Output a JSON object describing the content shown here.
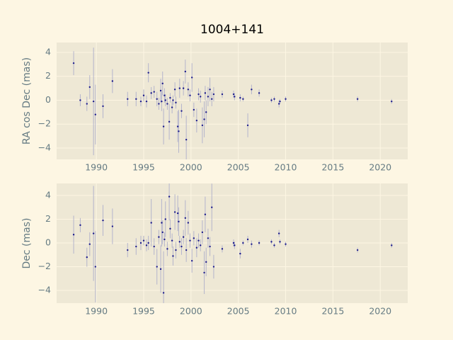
{
  "chart_data": [
    {
      "type": "scatter",
      "title": "1004+141",
      "ylabel": "RA cos Dec (mas)",
      "x": [
        1987.6,
        1988.3,
        1989.0,
        1989.3,
        1989.7,
        1989.9,
        1990.7,
        1991.7,
        1993.3,
        1994.2,
        1994.7,
        1995.0,
        1995.3,
        1995.5,
        1995.8,
        1996.1,
        1996.4,
        1996.6,
        1996.8,
        1996.9,
        1997.0,
        1997.1,
        1997.2,
        1997.3,
        1997.5,
        1997.7,
        1997.8,
        1998.0,
        1998.1,
        1998.3,
        1998.4,
        1998.6,
        1998.7,
        1998.8,
        1999.0,
        1999.2,
        1999.4,
        1999.5,
        1999.7,
        1999.9,
        2000.1,
        2000.3,
        2000.6,
        2000.8,
        2001.0,
        2001.2,
        2001.4,
        2001.5,
        2001.6,
        2001.8,
        2002.0,
        2002.2,
        2002.4,
        2003.3,
        2004.5,
        2004.6,
        2005.2,
        2005.5,
        2006.0,
        2006.4,
        2007.2,
        2008.5,
        2008.8,
        2009.3,
        2009.4,
        2010.0,
        2017.6,
        2021.2
      ],
      "values": [
        3.1,
        0.0,
        -0.3,
        1.1,
        -0.1,
        -1.2,
        -0.5,
        1.6,
        0.1,
        0.1,
        -0.1,
        0.4,
        -0.1,
        2.3,
        0.6,
        0.7,
        0.1,
        -0.3,
        0.8,
        -0.1,
        1.4,
        -2.2,
        0.4,
        0.0,
        -0.3,
        -1.8,
        0.2,
        -0.6,
        0.0,
        0.9,
        -0.2,
        -2.2,
        -2.6,
        1.0,
        -0.9,
        1.0,
        2.4,
        -3.3,
        0.9,
        0.4,
        1.9,
        -0.8,
        -1.7,
        0.5,
        0.3,
        -2.1,
        -1.6,
        0.6,
        -1.0,
        0.3,
        0.9,
        0.1,
        0.5,
        0.5,
        0.5,
        0.3,
        0.2,
        0.1,
        -2.1,
        0.9,
        0.6,
        0.0,
        0.1,
        -0.3,
        -0.1,
        0.1,
        0.1,
        -0.1
      ],
      "errors": [
        1.0,
        0.5,
        0.6,
        1.0,
        4.5,
        2.5,
        1.0,
        1.0,
        0.6,
        0.6,
        0.4,
        0.5,
        0.5,
        0.8,
        0.5,
        0.5,
        0.6,
        0.5,
        1.0,
        0.8,
        1.0,
        1.5,
        0.6,
        0.5,
        0.5,
        1.5,
        0.4,
        0.5,
        0.4,
        0.6,
        0.5,
        1.3,
        1.8,
        0.8,
        0.6,
        0.6,
        1.0,
        2.0,
        0.6,
        0.5,
        1.2,
        0.6,
        1.0,
        0.5,
        0.5,
        1.5,
        1.5,
        0.6,
        1.0,
        0.8,
        1.0,
        0.6,
        0.6,
        0.3,
        0.3,
        0.3,
        0.3,
        0.2,
        1.0,
        0.4,
        0.3,
        0.2,
        0.2,
        0.3,
        0.2,
        0.2,
        0.2,
        0.2
      ],
      "xlim": [
        1985.8,
        2022.9
      ],
      "xticks": [
        1990,
        1995,
        2000,
        2005,
        2010,
        2015,
        2020
      ],
      "ylim": [
        -4.95,
        4.83
      ],
      "yticks": [
        {
          "value": -4,
          "label": "−4"
        },
        {
          "value": -2,
          "label": "−2"
        },
        0,
        2,
        4
      ],
      "color": "#1c1c8c",
      "error_color": "#b4b4cc",
      "grid": true
    },
    {
      "type": "scatter",
      "ylabel": "Dec (mas)",
      "x": [
        1987.6,
        1988.3,
        1989.0,
        1989.3,
        1989.7,
        1989.9,
        1990.7,
        1991.7,
        1993.3,
        1994.2,
        1994.7,
        1995.0,
        1995.3,
        1995.5,
        1995.8,
        1996.1,
        1996.4,
        1996.6,
        1996.8,
        1996.9,
        1997.0,
        1997.1,
        1997.2,
        1997.3,
        1997.5,
        1997.7,
        1997.8,
        1998.0,
        1998.1,
        1998.3,
        1998.4,
        1998.6,
        1998.7,
        1998.8,
        1999.0,
        1999.2,
        1999.4,
        1999.5,
        1999.7,
        1999.9,
        2000.1,
        2000.3,
        2000.6,
        2000.8,
        2001.0,
        2001.2,
        2001.4,
        2001.5,
        2001.6,
        2001.8,
        2002.0,
        2002.2,
        2002.4,
        2003.3,
        2004.5,
        2004.6,
        2005.2,
        2005.5,
        2006.0,
        2006.4,
        2007.2,
        2008.5,
        2008.8,
        2009.3,
        2009.4,
        2010.0,
        2017.6,
        2021.2
      ],
      "values": [
        0.7,
        1.5,
        -1.2,
        -0.1,
        0.8,
        -2.0,
        1.9,
        1.4,
        -0.6,
        -0.3,
        0.0,
        0.2,
        -0.2,
        0.0,
        1.7,
        -0.3,
        -2.0,
        0.5,
        -2.2,
        1.7,
        0.9,
        -4.2,
        0.3,
        2.0,
        -0.5,
        3.9,
        1.2,
        0.2,
        -1.1,
        2.6,
        -0.6,
        2.5,
        1.8,
        0.1,
        -0.3,
        0.5,
        2.1,
        -0.6,
        1.7,
        0.2,
        -1.5,
        0.4,
        -0.4,
        0.2,
        -0.2,
        0.9,
        -2.5,
        2.4,
        -1.6,
        0.4,
        -0.3,
        3.0,
        -2.0,
        -0.5,
        0.0,
        -0.2,
        -0.9,
        0.0,
        0.3,
        -0.1,
        0.0,
        0.1,
        -0.2,
        0.8,
        0.1,
        -0.1,
        -0.6,
        -0.2
      ],
      "errors": [
        1.6,
        0.6,
        0.8,
        1.0,
        4.0,
        3.0,
        1.3,
        1.5,
        0.6,
        0.7,
        0.6,
        0.4,
        0.5,
        0.6,
        2.0,
        0.7,
        1.5,
        0.6,
        2.0,
        2.0,
        1.0,
        3.5,
        0.6,
        1.5,
        0.6,
        2.0,
        0.8,
        0.6,
        0.8,
        1.5,
        0.7,
        1.5,
        1.2,
        0.5,
        0.7,
        0.6,
        1.5,
        1.0,
        1.0,
        0.6,
        1.0,
        0.6,
        0.8,
        0.6,
        0.5,
        1.0,
        1.8,
        1.5,
        1.2,
        0.8,
        0.8,
        2.0,
        1.0,
        0.3,
        0.3,
        0.3,
        0.4,
        0.2,
        0.3,
        0.3,
        0.2,
        0.2,
        0.2,
        0.3,
        0.2,
        0.2,
        0.2,
        0.2
      ],
      "xlim": [
        1985.8,
        2022.9
      ],
      "xticks": [
        1990,
        1995,
        2000,
        2005,
        2010,
        2015,
        2020
      ],
      "ylim": [
        -5.07,
        5.01
      ],
      "yticks": [
        {
          "value": -4,
          "label": "−4"
        },
        {
          "value": -2,
          "label": "−2"
        },
        0,
        2,
        4
      ],
      "color": "#1c1c8c",
      "error_color": "#b4b4cc",
      "grid": true
    }
  ]
}
